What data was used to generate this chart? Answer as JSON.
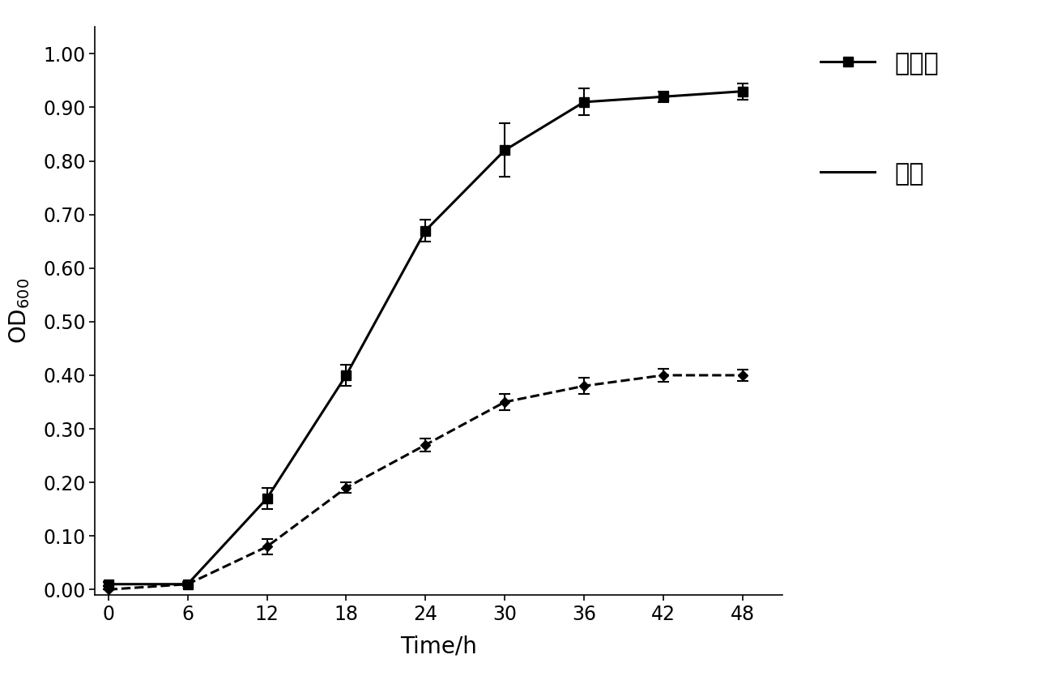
{
  "x": [
    0,
    6,
    12,
    18,
    24,
    30,
    36,
    42,
    48
  ],
  "solid_y": [
    0.01,
    0.01,
    0.17,
    0.4,
    0.67,
    0.82,
    0.91,
    0.92,
    0.93
  ],
  "solid_yerr": [
    0.004,
    0.004,
    0.02,
    0.02,
    0.02,
    0.05,
    0.025,
    0.01,
    0.015
  ],
  "dashed_y": [
    0.0,
    0.01,
    0.08,
    0.19,
    0.27,
    0.35,
    0.38,
    0.4,
    0.4
  ],
  "dashed_yerr": [
    0.0,
    0.004,
    0.015,
    0.01,
    0.012,
    0.015,
    0.015,
    0.012,
    0.01
  ],
  "xlabel": "Time/h",
  "legend_solid": "转化子",
  "legend_dashed": "对照",
  "xlim": [
    -1,
    51
  ],
  "ylim": [
    -0.01,
    1.05
  ],
  "yticks": [
    0.0,
    0.1,
    0.2,
    0.3,
    0.4,
    0.5,
    0.6,
    0.7,
    0.8,
    0.9,
    1.0
  ],
  "xticks": [
    0,
    6,
    12,
    18,
    24,
    30,
    36,
    42,
    48
  ],
  "line_color": "#000000",
  "bg_color": "#ffffff",
  "font_size_ticks": 17,
  "font_size_labels": 20,
  "font_size_legend": 22
}
